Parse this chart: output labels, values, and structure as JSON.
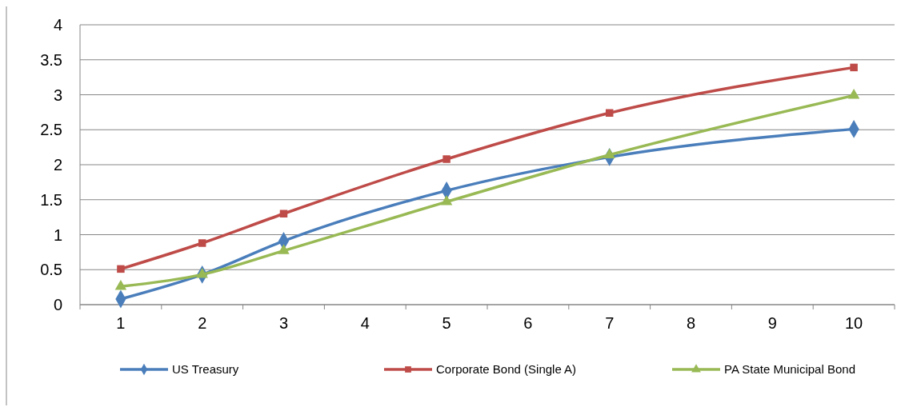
{
  "chart_data": {
    "type": "line",
    "categories": [
      "1",
      "2",
      "3",
      "4",
      "5",
      "6",
      "7",
      "8",
      "9",
      "10"
    ],
    "series": [
      {
        "name": "US Treasury",
        "color": "#4a7ebb",
        "marker": "diamond",
        "values": [
          0.08,
          0.43,
          0.91,
          null,
          1.63,
          null,
          2.11,
          null,
          null,
          2.51
        ]
      },
      {
        "name": "Corporate Bond (Single A)",
        "color": "#be4b48",
        "marker": "square",
        "values": [
          0.51,
          0.88,
          1.3,
          null,
          2.08,
          null,
          2.74,
          null,
          null,
          3.39
        ]
      },
      {
        "name": "PA State Municipal Bond",
        "color": "#98b954",
        "marker": "triangle",
        "values": [
          0.26,
          0.43,
          0.77,
          null,
          1.47,
          null,
          2.14,
          null,
          null,
          2.99
        ]
      }
    ],
    "ylim": [
      0,
      4
    ],
    "yticks": [
      0,
      0.5,
      1,
      1.5,
      2,
      2.5,
      3,
      3.5,
      4
    ],
    "grid": "y",
    "legend": "bottom"
  }
}
